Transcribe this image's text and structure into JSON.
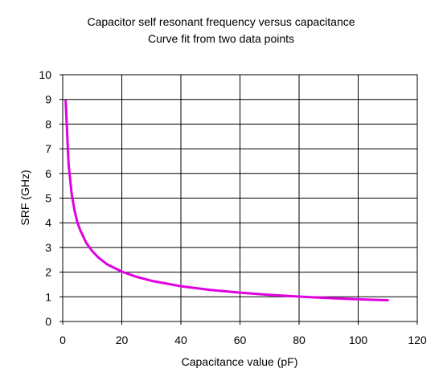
{
  "chart_data": {
    "type": "line",
    "title": "Capacitor self resonant frequency versus capacitance",
    "subtitle": "Curve fit from two data points",
    "xlabel": "Capacitance value (pF)",
    "ylabel": "SRF (GHz)",
    "xlim": [
      0,
      120
    ],
    "ylim": [
      0,
      10
    ],
    "x_ticks": [
      0,
      20,
      40,
      60,
      80,
      100,
      120
    ],
    "y_ticks": [
      0,
      1,
      2,
      3,
      4,
      5,
      6,
      7,
      8,
      9,
      10
    ],
    "grid": true,
    "legend": "none",
    "series": [
      {
        "color": "#e000e0",
        "points": [
          [
            1,
            8.95
          ],
          [
            2,
            6.35
          ],
          [
            3,
            5.2
          ],
          [
            4,
            4.5
          ],
          [
            5,
            4.0
          ],
          [
            6,
            3.68
          ],
          [
            8,
            3.18
          ],
          [
            10,
            2.85
          ],
          [
            12,
            2.6
          ],
          [
            15,
            2.32
          ],
          [
            20,
            2.02
          ],
          [
            25,
            1.81
          ],
          [
            30,
            1.65
          ],
          [
            40,
            1.43
          ],
          [
            50,
            1.28
          ],
          [
            60,
            1.17
          ],
          [
            70,
            1.08
          ],
          [
            80,
            1.01
          ],
          [
            90,
            0.95
          ],
          [
            100,
            0.9
          ],
          [
            110,
            0.86
          ]
        ]
      }
    ]
  }
}
